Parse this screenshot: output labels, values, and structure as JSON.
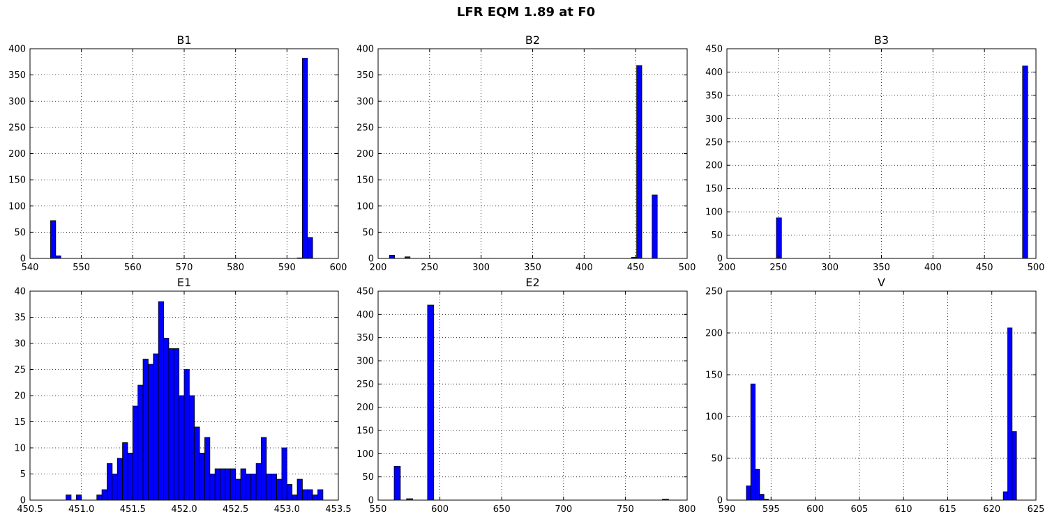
{
  "figure": {
    "title": "LFR EQM 1.89 at F0",
    "bar_color": "#0000ff"
  },
  "chart_data": [
    {
      "type": "bar",
      "title": "B1",
      "xlim": [
        540,
        600
      ],
      "ylim": [
        0,
        400
      ],
      "xticks": [
        540,
        550,
        560,
        570,
        580,
        590,
        600
      ],
      "yticks": [
        0,
        50,
        100,
        150,
        200,
        250,
        300,
        350,
        400
      ],
      "bin_width": 1,
      "bins": [
        [
          544,
          72
        ],
        [
          545,
          5
        ],
        [
          592,
          1
        ],
        [
          593,
          382
        ],
        [
          594,
          40
        ]
      ]
    },
    {
      "type": "bar",
      "title": "B2",
      "xlim": [
        200,
        500
      ],
      "ylim": [
        0,
        400
      ],
      "xticks": [
        200,
        250,
        300,
        350,
        400,
        450,
        500
      ],
      "yticks": [
        0,
        50,
        100,
        150,
        200,
        250,
        300,
        350,
        400
      ],
      "bin_width": 5,
      "bins": [
        [
          211,
          6
        ],
        [
          226,
          3
        ],
        [
          446,
          2
        ],
        [
          451,
          368
        ],
        [
          466,
          121
        ]
      ]
    },
    {
      "type": "bar",
      "title": "B3",
      "xlim": [
        200,
        500
      ],
      "ylim": [
        0,
        450
      ],
      "xticks": [
        200,
        250,
        300,
        350,
        400,
        450,
        500
      ],
      "yticks": [
        0,
        50,
        100,
        150,
        200,
        250,
        300,
        350,
        400,
        450
      ],
      "bin_width": 5,
      "bins": [
        [
          248,
          87
        ],
        [
          487,
          413
        ]
      ]
    },
    {
      "type": "bar",
      "title": "E1",
      "xlim": [
        450.5,
        453.5
      ],
      "ylim": [
        0,
        40
      ],
      "xticks": [
        450.5,
        451.0,
        451.5,
        452.0,
        452.5,
        453.0,
        453.5
      ],
      "yticks": [
        0,
        5,
        10,
        15,
        20,
        25,
        30,
        35,
        40
      ],
      "bin_width": 0.05,
      "bins": [
        [
          450.85,
          1
        ],
        [
          450.95,
          1
        ],
        [
          451.15,
          1
        ],
        [
          451.2,
          2
        ],
        [
          451.25,
          7
        ],
        [
          451.3,
          5
        ],
        [
          451.35,
          8
        ],
        [
          451.4,
          11
        ],
        [
          451.45,
          9
        ],
        [
          451.5,
          18
        ],
        [
          451.55,
          22
        ],
        [
          451.6,
          27
        ],
        [
          451.65,
          26
        ],
        [
          451.7,
          28
        ],
        [
          451.75,
          38
        ],
        [
          451.8,
          31
        ],
        [
          451.85,
          29
        ],
        [
          451.9,
          29
        ],
        [
          451.95,
          20
        ],
        [
          452.0,
          25
        ],
        [
          452.05,
          20
        ],
        [
          452.1,
          14
        ],
        [
          452.15,
          9
        ],
        [
          452.2,
          12
        ],
        [
          452.25,
          5
        ],
        [
          452.3,
          6
        ],
        [
          452.35,
          6
        ],
        [
          452.4,
          6
        ],
        [
          452.45,
          6
        ],
        [
          452.5,
          4
        ],
        [
          452.55,
          6
        ],
        [
          452.6,
          5
        ],
        [
          452.65,
          5
        ],
        [
          452.7,
          7
        ],
        [
          452.75,
          12
        ],
        [
          452.8,
          5
        ],
        [
          452.85,
          5
        ],
        [
          452.9,
          4
        ],
        [
          452.95,
          10
        ],
        [
          453.0,
          3
        ],
        [
          453.05,
          1
        ],
        [
          453.1,
          4
        ],
        [
          453.15,
          2
        ],
        [
          453.2,
          2
        ],
        [
          453.25,
          1
        ],
        [
          453.3,
          2
        ]
      ]
    },
    {
      "type": "bar",
      "title": "E2",
      "xlim": [
        550,
        800
      ],
      "ylim": [
        0,
        450
      ],
      "xticks": [
        550,
        600,
        650,
        700,
        750,
        800
      ],
      "yticks": [
        0,
        50,
        100,
        150,
        200,
        250,
        300,
        350,
        400,
        450
      ],
      "bin_width": 5,
      "bins": [
        [
          563,
          73
        ],
        [
          573,
          3
        ],
        [
          590,
          420
        ],
        [
          780,
          2
        ]
      ]
    },
    {
      "type": "bar",
      "title": "V",
      "xlim": [
        590,
        625
      ],
      "ylim": [
        0,
        250
      ],
      "xticks": [
        590,
        595,
        600,
        605,
        610,
        615,
        620,
        625
      ],
      "yticks": [
        0,
        50,
        100,
        150,
        200,
        250
      ],
      "bin_width": 0.5,
      "bins": [
        [
          592.2,
          17
        ],
        [
          592.7,
          139
        ],
        [
          593.2,
          37
        ],
        [
          593.7,
          7
        ],
        [
          594.2,
          1
        ],
        [
          621.3,
          10
        ],
        [
          621.8,
          206
        ],
        [
          622.3,
          82
        ]
      ]
    }
  ]
}
